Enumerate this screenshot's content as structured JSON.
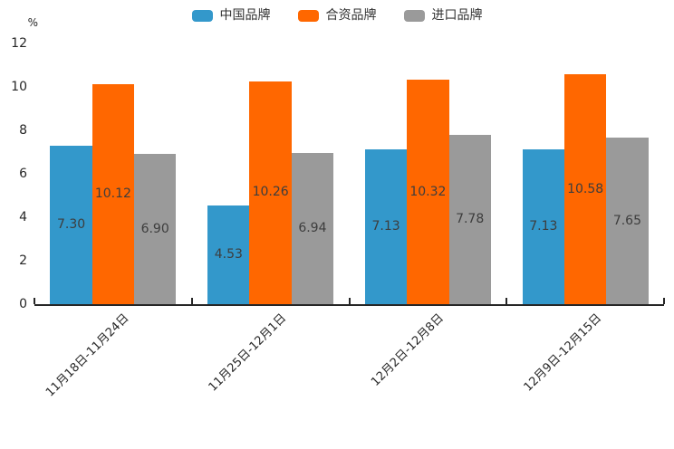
{
  "chart_data": {
    "type": "bar",
    "title": "",
    "categories": [
      "11月18日-11月24日",
      "11月25日-12月1日",
      "12月2日-12月8日",
      "12月9日-12月15日"
    ],
    "series": [
      {
        "name": "中国品牌",
        "color": "#3398cb",
        "values": [
          7.3,
          4.53,
          7.13,
          7.13
        ],
        "labels": [
          "7.30",
          "4.53",
          "7.13",
          "7.13"
        ]
      },
      {
        "name": "合资品牌",
        "color": "#ff6700",
        "values": [
          10.12,
          10.26,
          10.32,
          10.58
        ],
        "labels": [
          "10.12",
          "10.26",
          "10.32",
          "10.58"
        ]
      },
      {
        "name": "进口品牌",
        "color": "#9a9a9a",
        "values": [
          6.9,
          6.94,
          7.78,
          7.65
        ],
        "labels": [
          "6.90",
          "6.94",
          "7.78",
          "7.65"
        ]
      }
    ],
    "xlabel": "",
    "ylabel": "%",
    "yticks": [
      0,
      2,
      4,
      6,
      8,
      10,
      12
    ],
    "ylim": [
      0,
      12
    ],
    "legend_position": "top",
    "grid": false,
    "colors": {
      "axis": "#262626",
      "bar_label": "#3d3d3d",
      "legend_text": "#333333",
      "background": "#ffffff"
    }
  }
}
